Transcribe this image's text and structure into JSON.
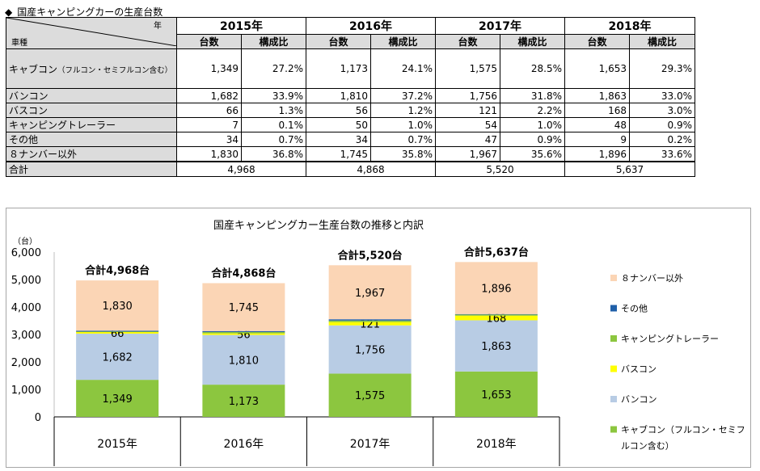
{
  "heading": {
    "bullet": "◆",
    "text": "国産キャンピングカーの生産台数"
  },
  "table": {
    "corner_top": "年",
    "corner_bottom": "車種",
    "years": [
      "2015年",
      "2016年",
      "2017年",
      "2018年"
    ],
    "sub_headers": [
      "台数",
      "構成比"
    ],
    "rows": [
      {
        "label": "キャブコン",
        "label_note": "（フルコン・セミフルコン含む）",
        "cells": [
          "1,349",
          "27.2%",
          "1,173",
          "24.1%",
          "1,575",
          "28.5%",
          "1,653",
          "29.3%"
        ]
      },
      {
        "label": "バンコン",
        "cells": [
          "1,682",
          "33.9%",
          "1,810",
          "37.2%",
          "1,756",
          "31.8%",
          "1,863",
          "33.0%"
        ]
      },
      {
        "label": "バスコン",
        "cells": [
          "66",
          "1.3%",
          "56",
          "1.2%",
          "121",
          "2.2%",
          "168",
          "3.0%"
        ]
      },
      {
        "label": "キャンピングトレーラー",
        "cells": [
          "7",
          "0.1%",
          "50",
          "1.0%",
          "54",
          "1.0%",
          "48",
          "0.9%"
        ]
      },
      {
        "label": "その他",
        "cells": [
          "34",
          "0.7%",
          "34",
          "0.7%",
          "47",
          "0.9%",
          "9",
          "0.2%"
        ]
      },
      {
        "label": "８ナンバー以外",
        "cells": [
          "1,830",
          "36.8%",
          "1,745",
          "35.8%",
          "1,967",
          "35.6%",
          "1,896",
          "33.6%"
        ]
      }
    ],
    "total_label": "合計",
    "totals": [
      "4,968",
      "4,868",
      "5,520",
      "5,637"
    ]
  },
  "chart_data": {
    "type": "bar",
    "stacked": true,
    "title": "国産キャンピングカー生産台数の推移と内訳",
    "ylabel": "（台）",
    "ylim": [
      0,
      6000
    ],
    "yticks": [
      0,
      1000,
      2000,
      3000,
      4000,
      5000,
      6000
    ],
    "ytick_labels": [
      "0",
      "1,000",
      "2,000",
      "3,000",
      "4,000",
      "5,000",
      "6,000"
    ],
    "categories": [
      "2015年",
      "2016年",
      "2017年",
      "2018年"
    ],
    "series": [
      {
        "name": "キャブコン（フルコン・セミフルコン含む）",
        "legend_lines": [
          "キャブコン（フルコン・セミフ",
          "ルコン含む）"
        ],
        "color": "#8cc63f",
        "values": [
          1349,
          1173,
          1575,
          1653
        ],
        "labels": [
          "1,349",
          "1,173",
          "1,575",
          "1,653"
        ]
      },
      {
        "name": "バンコン",
        "legend_lines": [
          "バンコン"
        ],
        "color": "#b8cce4",
        "values": [
          1682,
          1810,
          1756,
          1863
        ],
        "labels": [
          "1,682",
          "1,810",
          "1,756",
          "1,863"
        ]
      },
      {
        "name": "バスコン",
        "legend_lines": [
          "バスコン"
        ],
        "color": "#ffff00",
        "values": [
          66,
          56,
          121,
          168
        ],
        "labels": [
          "66",
          "56",
          "121",
          "168"
        ]
      },
      {
        "name": "キャンピングトレーラー",
        "legend_lines": [
          "キャンピングトレーラー"
        ],
        "color": "#8cc63f",
        "values": [
          7,
          50,
          54,
          48
        ],
        "labels": [
          "",
          "",
          "",
          ""
        ]
      },
      {
        "name": "その他",
        "legend_lines": [
          "その他"
        ],
        "color": "#1f5fa8",
        "values": [
          34,
          34,
          47,
          9
        ],
        "labels": [
          "",
          "",
          "",
          ""
        ]
      },
      {
        "name": "８ナンバー以外",
        "legend_lines": [
          "８ナンバー以外"
        ],
        "color": "#fbd5b5",
        "values": [
          1830,
          1745,
          1967,
          1896
        ],
        "labels": [
          "1,830",
          "1,745",
          "1,967",
          "1,896"
        ]
      }
    ],
    "totals": [
      4968,
      4868,
      5520,
      5637
    ],
    "total_labels": [
      "合計4,968台",
      "合計4,868台",
      "合計5,520台",
      "合計5,637台"
    ],
    "legend_position": "right",
    "grid": false
  }
}
